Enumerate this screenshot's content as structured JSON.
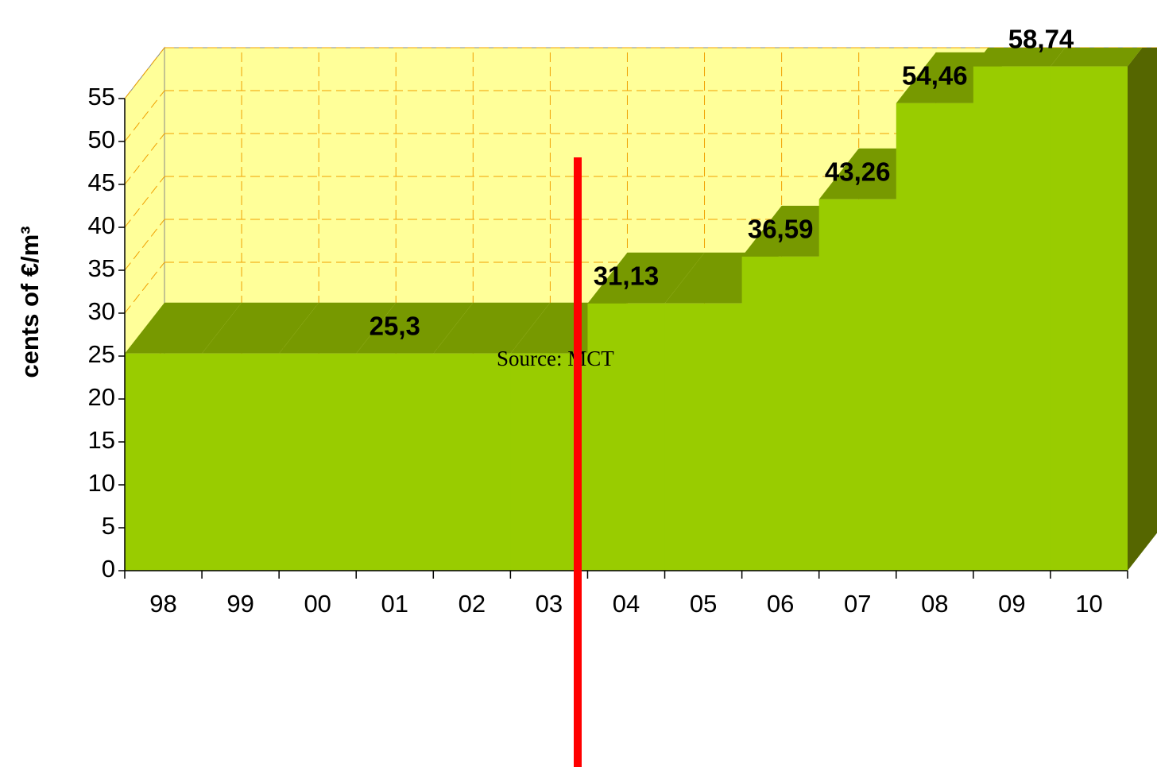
{
  "chart_data": {
    "type": "area",
    "y_label": "cents of €/m³",
    "categories": [
      "98",
      "99",
      "00",
      "01",
      "02",
      "03",
      "04",
      "05",
      "06",
      "07",
      "08",
      "09",
      "10"
    ],
    "values": [
      25.3,
      25.3,
      25.3,
      25.3,
      25.3,
      25.3,
      31.13,
      31.13,
      36.59,
      43.26,
      54.46,
      58.74,
      58.74
    ],
    "value_labels": [
      null,
      null,
      null,
      "25,3",
      null,
      null,
      "31,13",
      null,
      "36,59",
      "43,26",
      "54,46",
      null,
      "58,74"
    ],
    "ylim": [
      0,
      55
    ],
    "yticks": [
      0,
      5,
      10,
      15,
      20,
      25,
      30,
      35,
      40,
      45,
      50,
      55
    ],
    "grid": true,
    "color": "#99cc00",
    "wall_color": "#ffff99",
    "annotation": "Source: MCT"
  }
}
